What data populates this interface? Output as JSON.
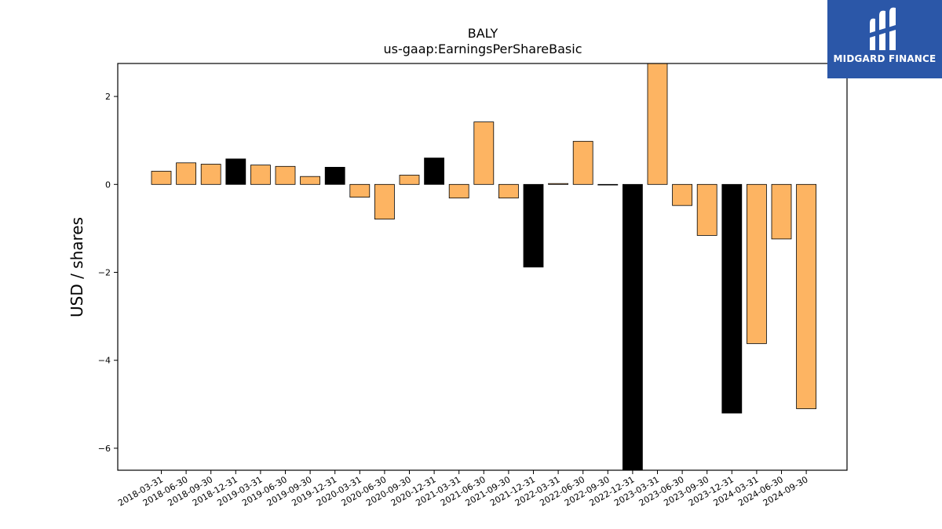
{
  "chart_data": {
    "type": "bar",
    "title": "BALY",
    "subtitle": "us-gaap:EarningsPerShareBasic",
    "xlabel": "",
    "ylabel": "USD / shares",
    "ylim": [
      -6.5,
      2.75
    ],
    "yticks": [
      2,
      0,
      -2,
      -4,
      -6
    ],
    "ytick_labels": [
      "2",
      "0",
      "−2",
      "−4",
      "−6"
    ],
    "grid": false,
    "categories": [
      "2018-03-31",
      "2018-06-30",
      "2018-09-30",
      "2018-12-31",
      "2019-03-31",
      "2019-06-30",
      "2019-09-30",
      "2019-12-31",
      "2020-03-31",
      "2020-06-30",
      "2020-09-30",
      "2020-12-31",
      "2021-03-31",
      "2021-06-30",
      "2021-09-30",
      "2021-12-31",
      "2022-03-31",
      "2022-06-30",
      "2022-09-30",
      "2022-12-31",
      "2023-03-31",
      "2023-06-30",
      "2023-09-30",
      "2023-12-31",
      "2024-03-31",
      "2024-06-30",
      "2024-09-30"
    ],
    "values": [
      0.3,
      0.49,
      0.46,
      0.58,
      0.44,
      0.41,
      0.18,
      0.39,
      -0.29,
      -0.79,
      0.21,
      0.6,
      -0.31,
      1.42,
      -0.31,
      -1.88,
      0.02,
      0.98,
      -0.01,
      -6.6,
      2.76,
      -0.48,
      -1.16,
      -5.2,
      -3.62,
      -1.24,
      -5.1
    ],
    "bar_types": [
      "q",
      "q",
      "q",
      "y",
      "q",
      "q",
      "q",
      "y",
      "q",
      "q",
      "q",
      "y",
      "q",
      "q",
      "q",
      "y",
      "q",
      "q",
      "q",
      "y",
      "q",
      "q",
      "q",
      "y",
      "q",
      "q",
      "q"
    ],
    "colors": {
      "quarter": "#fdb462",
      "year": "#000000",
      "edge": "#000000"
    }
  },
  "logo": {
    "text": "MIDGARD FINANCE",
    "icon": "midgard-logo-icon"
  }
}
